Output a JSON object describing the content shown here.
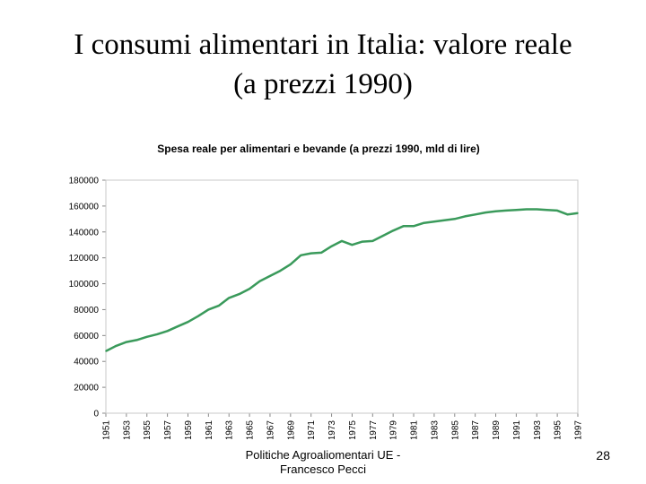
{
  "slide": {
    "title_line1": "I consumi alimentari in Italia: valore reale",
    "title_line2": "(a prezzi 1990)",
    "footer_line1": "Politiche Agroaliomentari UE -",
    "footer_line2": "Francesco Pecci",
    "page_number": "28"
  },
  "chart_data": {
    "type": "line",
    "title": "Spesa reale per alimentari e bevande (a prezzi 1990, mld di lire)",
    "xlabel": "",
    "ylabel": "",
    "ylim": [
      0,
      180000
    ],
    "yticks": [
      "0",
      "20000",
      "40000",
      "60000",
      "80000",
      "100000",
      "120000",
      "140000",
      "160000",
      "180000"
    ],
    "x": [
      1951,
      1952,
      1953,
      1954,
      1955,
      1956,
      1957,
      1958,
      1959,
      1960,
      1961,
      1962,
      1963,
      1964,
      1965,
      1966,
      1967,
      1968,
      1969,
      1970,
      1971,
      1972,
      1973,
      1974,
      1975,
      1976,
      1977,
      1978,
      1979,
      1980,
      1981,
      1982,
      1983,
      1984,
      1985,
      1986,
      1987,
      1988,
      1989,
      1990,
      1991,
      1992,
      1993,
      1994,
      1995,
      1996,
      1997
    ],
    "xtick_labels": [
      "1951",
      "1953",
      "1955",
      "1957",
      "1959",
      "1961",
      "1963",
      "1965",
      "1967",
      "1969",
      "1971",
      "1973",
      "1975",
      "1977",
      "1979",
      "1981",
      "1983",
      "1985",
      "1987",
      "1989",
      "1991",
      "1993",
      "1995",
      "1997"
    ],
    "series": [
      {
        "color": "#3a9a5b",
        "values": [
          48000,
          52000,
          55000,
          56500,
          59000,
          61000,
          63500,
          67000,
          70500,
          75000,
          80000,
          83000,
          89000,
          92000,
          96000,
          102000,
          106000,
          110000,
          115000,
          122000,
          123500,
          124000,
          129000,
          133000,
          130000,
          132500,
          133000,
          137000,
          141000,
          144500,
          144500,
          147000,
          148000,
          149000,
          150000,
          152000,
          153500,
          155000,
          156000,
          156500,
          157000,
          157500,
          157500,
          157000,
          156500,
          153500,
          154500
        ]
      }
    ],
    "grid": false,
    "legend": "none"
  }
}
